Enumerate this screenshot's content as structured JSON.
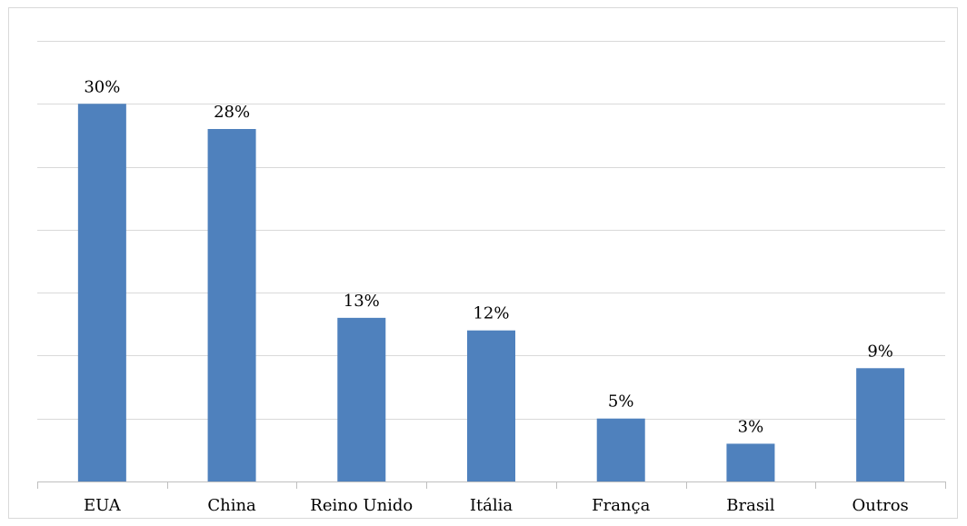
{
  "chart_data": {
    "type": "bar",
    "title": "",
    "xlabel": "",
    "ylabel": "",
    "categories": [
      "EUA",
      "China",
      "Reino Unido",
      "Itália",
      "França",
      "Brasil",
      "Outros"
    ],
    "values": [
      30,
      28,
      13,
      12,
      5,
      3,
      9
    ],
    "value_labels": [
      "30%",
      "28%",
      "13%",
      "12%",
      "5%",
      "3%",
      "9%"
    ],
    "ylim": [
      0,
      35
    ],
    "gridlines": true,
    "legend": "none",
    "colors": {
      "bar": "#4f81bd",
      "grid": "#d9d9d9",
      "axis": "#bfbfbf"
    }
  }
}
